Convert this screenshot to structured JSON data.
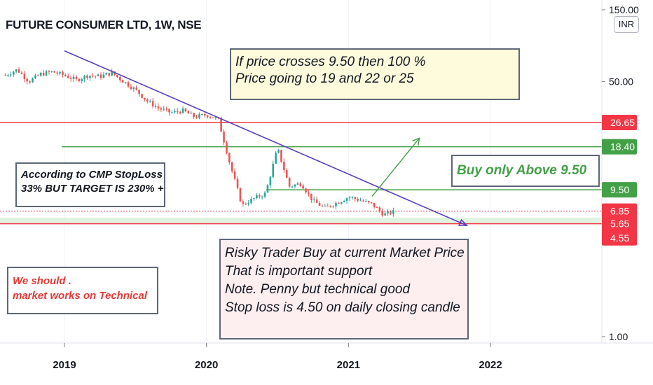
{
  "header": {
    "title": "FUTURE CONSUMER LTD, 1W, NSE",
    "currency_badge": "INR"
  },
  "annotations": {
    "breakout_note": {
      "line1": "If price crosses 9.50 then 100 %",
      "line2": "Price going to 19 and 22 or 25"
    },
    "stoploss_note": {
      "line1": "According to CMP StopLoss",
      "line2": "33% BUT TARGET IS 230% +"
    },
    "buy_note": {
      "text": "Buy only Above 9.50"
    },
    "risky_note": {
      "line1": "Risky Trader Buy at current Market Price",
      "line2": "That is important support",
      "line3": "Note. Penny but technical good",
      "line4": "Stop loss is 4.50 on daily closing candle"
    },
    "technical_note": {
      "line1": "We should .",
      "line2": "market works on Technical"
    }
  },
  "colors": {
    "red": "#f23645",
    "green": "#43a047",
    "trend": "#5b3fbf",
    "candle_up": "#26a69a",
    "candle_down": "#ef5350",
    "support_band": "#dff3e0"
  },
  "chart_data": {
    "type": "candlestick",
    "title": "FUTURE CONSUMER LTD, 1W, NSE",
    "y_scale": "log",
    "ylim": [
      1.0,
      150.0
    ],
    "y_ticks": [
      {
        "value": 150,
        "label": "150.00"
      },
      {
        "value": 50,
        "label": "50.00"
      },
      {
        "value": 1,
        "label": "1.00"
      }
    ],
    "x_ticks": [
      "2019",
      "2020",
      "2021",
      "2022"
    ],
    "horizontal_levels": [
      {
        "value": 26.65,
        "label": "26.65",
        "color": "#f23645"
      },
      {
        "value": 18.4,
        "label": "18.40",
        "color": "#43a047"
      },
      {
        "value": 9.5,
        "label": "9.50",
        "color": "#43a047"
      },
      {
        "value": 6.85,
        "label": "6.85",
        "color": "#f23645",
        "style": "dotted"
      },
      {
        "value": 5.65,
        "label": "5.65",
        "color": "#f23645"
      },
      {
        "value": 4.55,
        "label": "4.55",
        "color": "#f23645"
      }
    ],
    "support_band": [
      5.65,
      6.2
    ],
    "trendline": {
      "start": [
        "2019-01",
        80
      ],
      "end": [
        "2021-11",
        5.5
      ]
    },
    "projection_arrow": {
      "start": [
        "2021-03",
        8.6
      ],
      "end": [
        "2021-07",
        21
      ]
    },
    "price_path": [
      [
        "2018-08",
        55
      ],
      [
        "2018-09",
        60
      ],
      [
        "2018-10",
        50
      ],
      [
        "2018-11",
        56
      ],
      [
        "2018-12",
        58
      ],
      [
        "2019-01",
        55
      ],
      [
        "2019-02",
        51
      ],
      [
        "2019-03",
        55
      ],
      [
        "2019-04",
        54
      ],
      [
        "2019-05",
        57
      ],
      [
        "2019-06",
        50
      ],
      [
        "2019-07",
        44
      ],
      [
        "2019-08",
        37
      ],
      [
        "2019-09",
        33
      ],
      [
        "2019-10",
        31
      ],
      [
        "2019-11",
        32
      ],
      [
        "2019-12",
        29
      ],
      [
        "2020-01",
        30
      ],
      [
        "2020-02",
        28
      ],
      [
        "2020-03",
        14
      ],
      [
        "2020-04",
        7.5
      ],
      [
        "2020-05",
        8.3
      ],
      [
        "2020-06",
        9
      ],
      [
        "2020-07",
        18
      ],
      [
        "2020-08",
        10
      ],
      [
        "2020-09",
        10.5
      ],
      [
        "2020-10",
        8
      ],
      [
        "2020-11",
        7.2
      ],
      [
        "2020-12",
        7.8
      ],
      [
        "2021-01",
        8.5
      ],
      [
        "2021-02",
        8.1
      ],
      [
        "2021-03",
        7.6
      ],
      [
        "2021-04",
        6.5
      ],
      [
        "2021-05",
        6.85
      ]
    ]
  }
}
